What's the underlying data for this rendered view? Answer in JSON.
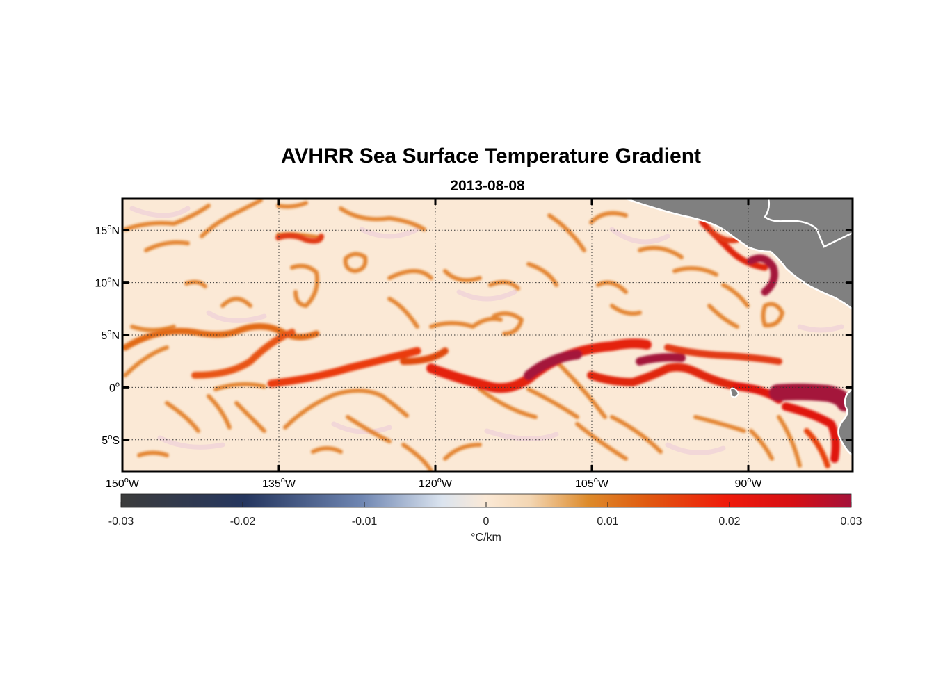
{
  "title": "AVHRR Sea Surface Temperature Gradient",
  "subtitle": "2013-08-08",
  "map": {
    "lon_range": [
      -150,
      -80
    ],
    "lat_range": [
      -8,
      18
    ],
    "lon_ticks": [
      {
        "value": -150,
        "num": "150",
        "sup": "o",
        "hemi": "W"
      },
      {
        "value": -135,
        "num": "135",
        "sup": "o",
        "hemi": "W"
      },
      {
        "value": -120,
        "num": "120",
        "sup": "o",
        "hemi": "W"
      },
      {
        "value": -105,
        "num": "105",
        "sup": "o",
        "hemi": "W"
      },
      {
        "value": -90,
        "num": "90",
        "sup": "o",
        "hemi": "W"
      }
    ],
    "lat_ticks": [
      {
        "value": 15,
        "num": "15",
        "sup": "o",
        "hemi": "N"
      },
      {
        "value": 10,
        "num": "10",
        "sup": "o",
        "hemi": "N"
      },
      {
        "value": 5,
        "num": "5",
        "sup": "o",
        "hemi": "N"
      },
      {
        "value": 0,
        "num": "0",
        "sup": "o",
        "hemi": ""
      },
      {
        "value": -5,
        "num": "5",
        "sup": "o",
        "hemi": "S"
      }
    ],
    "grid": "dotted",
    "land_color": "#808080",
    "ocean_background": "#fbe9d6"
  },
  "colorbar": {
    "label": "°C/km",
    "range": [
      -0.03,
      0.03
    ],
    "ticks": [
      "-0.03",
      "-0.02",
      "-0.01",
      "0",
      "0.01",
      "0.02",
      "0.03"
    ],
    "colors": [
      "#3c3c3c",
      "#25365f",
      "#6f86b2",
      "#dbe4ef",
      "#fbe9d6",
      "#dd8a2a",
      "#e05a10",
      "#ef1a0a",
      "#d60f14",
      "#a4123a"
    ]
  }
}
